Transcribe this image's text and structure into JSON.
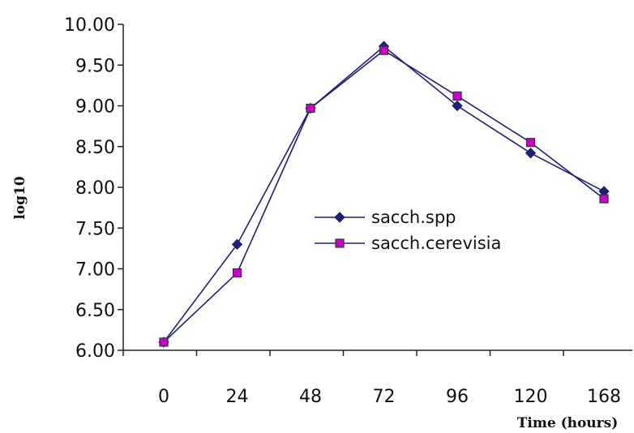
{
  "chart_data": {
    "type": "line",
    "xlabel": "Time (hours)",
    "ylabel": "log10",
    "categories": [
      "0",
      "24",
      "48",
      "72",
      "96",
      "120",
      "168"
    ],
    "ylim": [
      6.0,
      10.0
    ],
    "yticks": [
      "6.00",
      "6.50",
      "7.00",
      "7.50",
      "8.00",
      "8.50",
      "9.00",
      "9.50",
      "10.00"
    ],
    "grid": false,
    "legend_position": "center-right",
    "series": [
      {
        "name": "sacch.spp",
        "values": [
          6.1,
          7.3,
          8.97,
          9.73,
          9.0,
          8.42,
          7.95
        ],
        "color": "#1f1f7a",
        "marker": "diamond"
      },
      {
        "name": "sacch.cerevisia",
        "values": [
          6.1,
          6.95,
          8.97,
          9.68,
          9.12,
          8.55,
          7.86
        ],
        "color": "#cc00cc",
        "marker": "square"
      }
    ]
  }
}
